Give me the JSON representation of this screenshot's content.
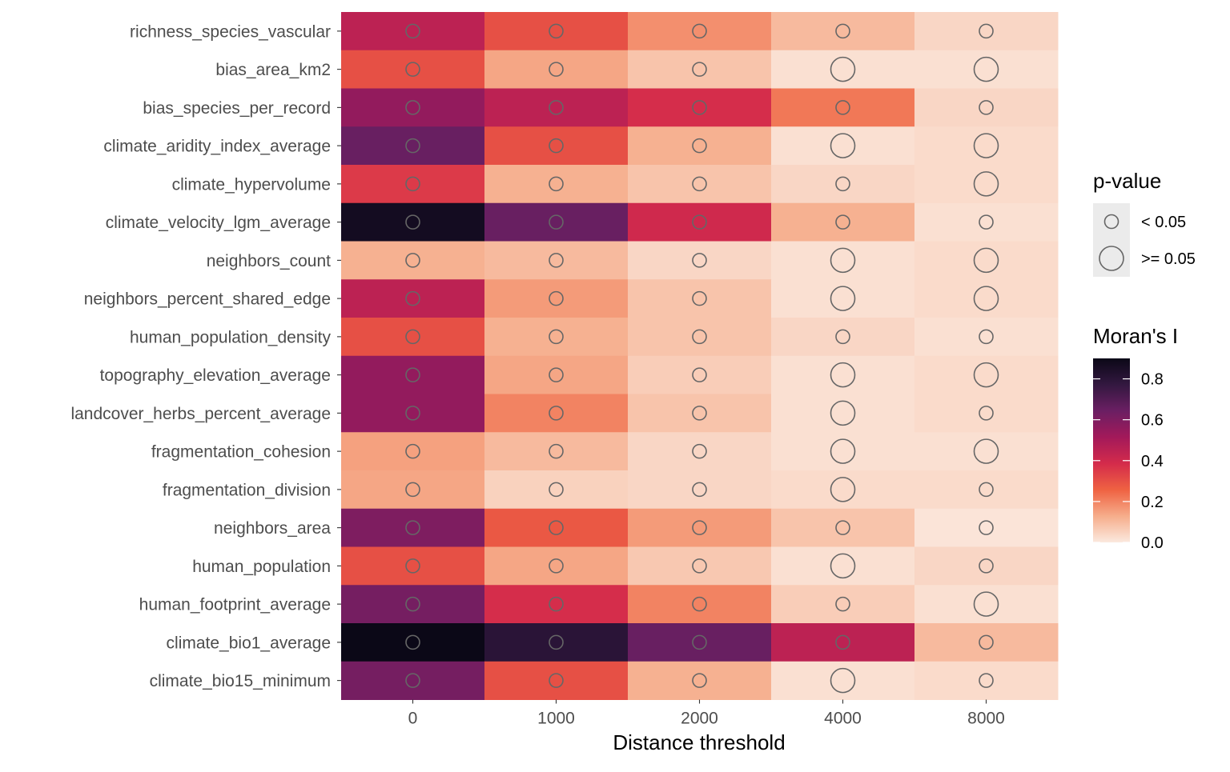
{
  "chart_data": {
    "type": "heatmap",
    "xlabel": "Distance threshold",
    "ylabel": "",
    "x": [
      "0",
      "1000",
      "2000",
      "4000",
      "8000"
    ],
    "y": [
      "richness_species_vascular",
      "bias_area_km2",
      "bias_species_per_record",
      "climate_aridity_index_average",
      "climate_hypervolume",
      "climate_velocity_lgm_average",
      "neighbors_count",
      "neighbors_percent_shared_edge",
      "human_population_density",
      "topography_elevation_average",
      "landcover_herbs_percent_average",
      "fragmentation_cohesion",
      "fragmentation_division",
      "neighbors_area",
      "human_population",
      "human_footprint_average",
      "climate_bio1_average",
      "climate_bio15_minimum"
    ],
    "values": [
      [
        0.45,
        0.3,
        0.18,
        0.1,
        0.04
      ],
      [
        0.3,
        0.14,
        0.08,
        0.02,
        0.02
      ],
      [
        0.55,
        0.45,
        0.38,
        0.22,
        0.04
      ],
      [
        0.65,
        0.3,
        0.12,
        0.02,
        0.03
      ],
      [
        0.35,
        0.12,
        0.08,
        0.04,
        0.03
      ],
      [
        0.87,
        0.65,
        0.4,
        0.12,
        0.02
      ],
      [
        0.12,
        0.1,
        0.04,
        0.02,
        0.03
      ],
      [
        0.45,
        0.16,
        0.08,
        0.02,
        0.03
      ],
      [
        0.3,
        0.12,
        0.08,
        0.04,
        0.02
      ],
      [
        0.55,
        0.14,
        0.06,
        0.02,
        0.03
      ],
      [
        0.55,
        0.2,
        0.08,
        0.02,
        0.03
      ],
      [
        0.15,
        0.1,
        0.04,
        0.02,
        0.02
      ],
      [
        0.14,
        0.05,
        0.04,
        0.03,
        0.03
      ],
      [
        0.6,
        0.28,
        0.16,
        0.08,
        0.01
      ],
      [
        0.3,
        0.14,
        0.07,
        0.02,
        0.04
      ],
      [
        0.62,
        0.38,
        0.2,
        0.06,
        0.02
      ],
      [
        0.9,
        0.8,
        0.65,
        0.45,
        0.1
      ],
      [
        0.62,
        0.3,
        0.12,
        0.02,
        0.03
      ]
    ],
    "p_value_significant": [
      [
        true,
        true,
        true,
        true,
        true
      ],
      [
        true,
        true,
        true,
        false,
        false
      ],
      [
        true,
        true,
        true,
        true,
        true
      ],
      [
        true,
        true,
        true,
        false,
        false
      ],
      [
        true,
        true,
        true,
        true,
        false
      ],
      [
        true,
        true,
        true,
        true,
        true
      ],
      [
        true,
        true,
        true,
        false,
        false
      ],
      [
        true,
        true,
        true,
        false,
        false
      ],
      [
        true,
        true,
        true,
        true,
        true
      ],
      [
        true,
        true,
        true,
        false,
        false
      ],
      [
        true,
        true,
        true,
        false,
        true
      ],
      [
        true,
        true,
        true,
        false,
        false
      ],
      [
        true,
        true,
        true,
        false,
        true
      ],
      [
        true,
        true,
        true,
        true,
        true
      ],
      [
        true,
        true,
        true,
        false,
        true
      ],
      [
        true,
        true,
        true,
        true,
        false
      ],
      [
        true,
        true,
        true,
        true,
        true
      ],
      [
        true,
        true,
        true,
        false,
        true
      ]
    ],
    "color_scale": {
      "title": "Moran's I",
      "ticks": [
        "0.0",
        "0.2",
        "0.4",
        "0.6",
        "0.8"
      ],
      "tick_values": [
        0.0,
        0.2,
        0.4,
        0.6,
        0.8
      ],
      "range": [
        0.0,
        0.9
      ],
      "stops": [
        "#fbe9df",
        "#f6ad8b",
        "#ef6242",
        "#d42b4b",
        "#a3195a",
        "#6b1f63",
        "#331840",
        "#0b0817"
      ]
    },
    "size_legend": {
      "title": "p-value",
      "labels": [
        "< 0.05",
        ">= 0.05"
      ]
    },
    "grid": false,
    "legend_position": "right"
  }
}
